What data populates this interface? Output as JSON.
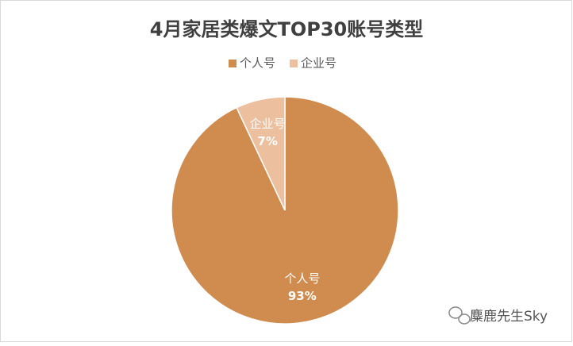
{
  "chart_data": {
    "type": "pie",
    "title": "4月家居类爆文TOP30账号类型",
    "categories": [
      "个人号",
      "企业号"
    ],
    "values": [
      93,
      7
    ],
    "value_labels": [
      "93%",
      "7%"
    ],
    "colors": [
      "#d08b4f",
      "#ecbf9f"
    ],
    "legend": "top"
  },
  "watermark": "麋鹿先生Sky"
}
